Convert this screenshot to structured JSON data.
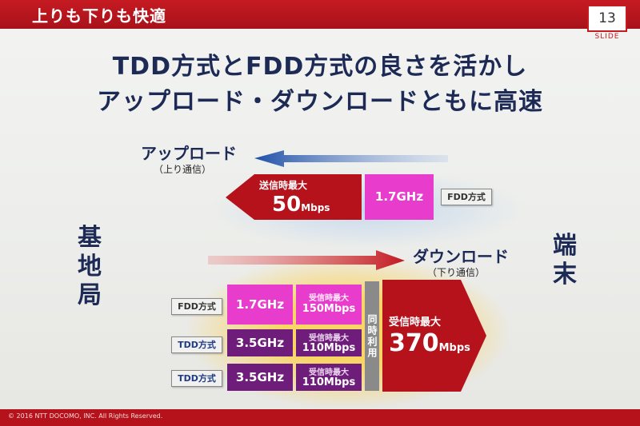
{
  "header": {
    "section_title": "上りも下りも快適",
    "slide_number": "13",
    "slide_label": "SLIDE"
  },
  "headline": {
    "line1": "TDD方式とFDD方式の良さを活かし",
    "line2": "アップロード・ダウンロードともに高速"
  },
  "sides": {
    "base_station": "基地局",
    "terminal": "端末"
  },
  "upload": {
    "label": "アップロード",
    "sublabel": "（上り通信）",
    "rate_caption": "送信時最大",
    "rate_value": "50",
    "rate_unit": "Mbps",
    "freq": "1.7GHz",
    "method_tag": "FDD方式"
  },
  "download": {
    "label": "ダウンロード",
    "sublabel": "（下り通信）",
    "carriers": [
      {
        "tag": "FDD方式",
        "freq": "1.7GHz",
        "caption": "受信時最大",
        "rate": "150Mbps"
      },
      {
        "tag": "TDD方式",
        "freq": "3.5GHz",
        "caption": "受信時最大",
        "rate": "110Mbps"
      },
      {
        "tag": "TDD方式",
        "freq": "3.5GHz",
        "caption": "受信時最大",
        "rate": "110Mbps"
      }
    ],
    "simultaneous": "同時利用",
    "total_caption": "受信時最大",
    "total_value": "370",
    "total_unit": "Mbps"
  },
  "footer": {
    "copyright": "© 2016 NTT DOCOMO, INC. All Rights Reserved."
  },
  "colors": {
    "brand_red": "#c61a22",
    "arrow_red": "#b5121b",
    "pink": "#e83ccc",
    "purple": "#6e1e7a",
    "navy": "#1c2a55"
  }
}
